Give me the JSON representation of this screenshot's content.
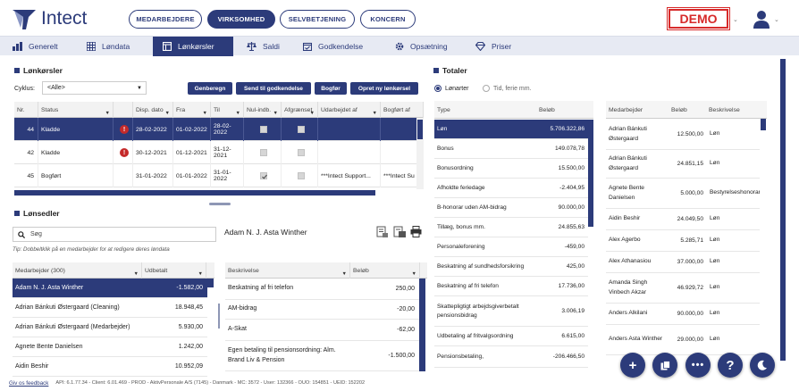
{
  "header": {
    "brand": "Intect",
    "top_tabs": [
      "MEDARBEJDERE",
      "VIRKSOMHED",
      "SELVBETJENING",
      "KONCERN"
    ],
    "active_top_tab": "VIRKSOMHED",
    "demo_label": "DEMO"
  },
  "nav": {
    "items": [
      "Generelt",
      "Løndata",
      "Lønkørsler",
      "Saldi",
      "Godkendelse",
      "Opsætning",
      "Priser"
    ],
    "active": "Lønkørsler"
  },
  "lonkorsler": {
    "title": "Lønkørsler",
    "cyklus_label": "Cyklus:",
    "cyklus_value": "<Alle>",
    "buttons": [
      "Genberegn",
      "Send til godkendelse",
      "Bogfør",
      "Opret ny lønkørsel"
    ],
    "columns": [
      "Nr.",
      "Status",
      "",
      "Disp. dato",
      "Fra",
      "Til",
      "Nul-indb.",
      "Afgrænset",
      "Udarbejdet af",
      "Bogført af"
    ],
    "rows": [
      {
        "nr": "44",
        "status": "Kladde",
        "warn": true,
        "disp": "28-02-2022",
        "fra": "01-02-2022",
        "til": "28-02-2022",
        "nul": false,
        "afg": false,
        "udarb": "",
        "bogf": "",
        "selected": true
      },
      {
        "nr": "42",
        "status": "Kladde",
        "warn": true,
        "disp": "30-12-2021",
        "fra": "01-12-2021",
        "til": "31-12-2021",
        "nul": false,
        "afg": false,
        "udarb": "",
        "bogf": "",
        "selected": false
      },
      {
        "nr": "45",
        "status": "Bogført",
        "warn": false,
        "disp": "31-01-2022",
        "fra": "01-01-2022",
        "til": "31-01-2022",
        "nul": true,
        "afg": false,
        "udarb": "***Intect Support...",
        "bogf": "***Intect Su",
        "selected": false
      }
    ]
  },
  "lonsedler": {
    "title": "Lønsedler",
    "search_placeholder": "Søg",
    "tip": "Tip: Dobbeltklik på en medarbejder for at redigere deres løndata",
    "selected_employee": "Adam N. J. Asta Winther",
    "emp_columns": [
      "Medarbejder (300)",
      "Udbetalt"
    ],
    "employees": [
      {
        "name": "Adam N. J. Asta Winther",
        "amount": "-1.582,00",
        "selected": true
      },
      {
        "name": "Adrian Bánkuti Østergaard (Cleaning)",
        "amount": "18.948,45",
        "selected": false
      },
      {
        "name": "Adrian Bánkuti Østergaard (Medarbejder)",
        "amount": "5.930,00",
        "selected": false
      },
      {
        "name": "Agnete Bente Danielsen",
        "amount": "1.242,00",
        "selected": false
      },
      {
        "name": "Aidin Beshir",
        "amount": "10.952,09",
        "selected": false
      }
    ],
    "line_columns": [
      "Beskrivelse",
      "Beløb"
    ],
    "lines": [
      {
        "desc": "Beskatning af fri telefon",
        "amount": "250,00"
      },
      {
        "desc": "AM-bidrag",
        "amount": "-20,00"
      },
      {
        "desc": "A-Skat",
        "amount": "-62,00"
      },
      {
        "desc": "Egen betaling til pensionsordning: Alm. Brand Liv & Pension",
        "amount": "-1.500,00"
      }
    ]
  },
  "totaler": {
    "title": "Totaler",
    "radio_options": [
      "Lønarter",
      "Tid, ferie mm."
    ],
    "radio_selected": "Lønarter",
    "type_columns": [
      "Type",
      "Beløb"
    ],
    "types": [
      {
        "type": "Løn",
        "amount": "5.706.322,86",
        "selected": true
      },
      {
        "type": "Bonus",
        "amount": "149.078,78",
        "selected": false
      },
      {
        "type": "Bonusordning",
        "amount": "15.500,00",
        "selected": false
      },
      {
        "type": "Afholdte feriedage",
        "amount": "-2.404,95",
        "selected": false
      },
      {
        "type": "B-honorar uden AM-bidrag",
        "amount": "90.000,00",
        "selected": false
      },
      {
        "type": "Tillæg, bonus mm.",
        "amount": "24.855,63",
        "selected": false
      },
      {
        "type": "Personaleforening",
        "amount": "-459,00",
        "selected": false
      },
      {
        "type": "Beskatning af sundhedsforsikring",
        "amount": "425,00",
        "selected": false
      },
      {
        "type": "Beskatning af fri telefon",
        "amount": "17.736,00",
        "selected": false
      },
      {
        "type": "Skattepligtigt arbejdsgiverbetalt pensionsbidrag",
        "amount": "3.006,19",
        "selected": false
      },
      {
        "type": "Udbetaling af fritvalgsordning",
        "amount": "6.615,00",
        "selected": false
      },
      {
        "type": "Pensionsbetaling,",
        "amount": "-206.466,50",
        "selected": false
      }
    ],
    "detail_columns": [
      "Medarbejder",
      "Beløb",
      "Beskrivelse"
    ],
    "details": [
      {
        "name": "Adrian Bánkuti Østergaard",
        "amount": "12.500,00",
        "desc": "Løn"
      },
      {
        "name": "Adrian Bánkuti Østergaard",
        "amount": "24.851,15",
        "desc": "Løn"
      },
      {
        "name": "Agnete Bente Danielsen",
        "amount": "5.000,00",
        "desc": "Bestyrelseshonorar"
      },
      {
        "name": "Aidin Beshir",
        "amount": "24.049,50",
        "desc": "Løn"
      },
      {
        "name": "Alex Agerbo",
        "amount": "5.285,71",
        "desc": "Løn"
      },
      {
        "name": "Alex Athanasiou",
        "amount": "37.000,00",
        "desc": "Løn"
      },
      {
        "name": "Amanda Singh Vinbech Akzar",
        "amount": "46.929,72",
        "desc": "Løn"
      },
      {
        "name": "Anders Alkilani",
        "amount": "90.000,00",
        "desc": "Løn"
      },
      {
        "name": "Anders Asta Winther",
        "amount": "29.000,00",
        "desc": "Løn"
      }
    ]
  },
  "footer": {
    "feedback": "Giv os feedback",
    "info": "API: 6.1.77.34 - Client: 6.01.469 - PROD - AktivPersonale A/S (7145) - Danmark - MC: 3572 - User: 132366 - OUO: 154851 - UEID: 152202"
  },
  "colors": {
    "primary": "#2c3b7a",
    "demo_red": "#d72a2a",
    "warning": "#c52a2a"
  }
}
